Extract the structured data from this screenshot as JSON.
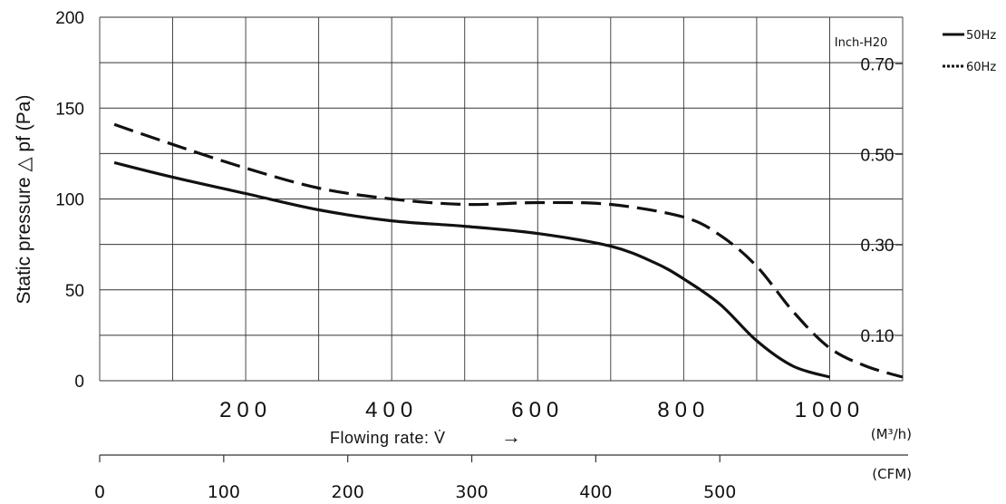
{
  "chart_data": {
    "type": "line",
    "title": "",
    "ylabel": "Static pressure △ pf (Pa)",
    "ylim": [
      0,
      200
    ],
    "y_ticks": [
      {
        "value": 0,
        "label": "0"
      },
      {
        "value": 50,
        "label": "50"
      },
      {
        "value": 100,
        "label": "100"
      },
      {
        "value": 150,
        "label": "150"
      },
      {
        "value": 200,
        "label": "200"
      }
    ],
    "xlim": [
      0,
      1100
    ],
    "x_ticks": [
      {
        "value": 200,
        "label": "200"
      },
      {
        "value": 400,
        "label": "400"
      },
      {
        "value": 600,
        "label": "600"
      },
      {
        "value": 800,
        "label": "800"
      },
      {
        "value": 1000,
        "label": "1000"
      }
    ],
    "xlabel": "Flowing rate: V̇",
    "xlabel_arrow": "→",
    "x_unit": "(M³/h)",
    "secondary_y": {
      "label": "Inch-H20",
      "ticks": [
        {
          "value": 0.1,
          "label": "0.10"
        },
        {
          "value": 0.3,
          "label": "0.30"
        },
        {
          "value": 0.5,
          "label": "0.50"
        },
        {
          "value": 0.7,
          "label": "0.70"
        }
      ]
    },
    "secondary_x": {
      "unit": "(CFM)",
      "ticks": [
        {
          "value": 0,
          "label": "0"
        },
        {
          "value": 100,
          "label": "100"
        },
        {
          "value": 200,
          "label": "200"
        },
        {
          "value": 300,
          "label": "300"
        },
        {
          "value": 400,
          "label": "400"
        },
        {
          "value": 500,
          "label": "500"
        }
      ]
    },
    "grid": true,
    "legend_position": "top-right outside",
    "series": [
      {
        "name": "50Hz",
        "style": "solid",
        "color": "#111111",
        "x": [
          20,
          100,
          200,
          300,
          400,
          500,
          600,
          700,
          760,
          800,
          850,
          900,
          950,
          1000
        ],
        "y": [
          120,
          112,
          103,
          94,
          88,
          85,
          81,
          74,
          65,
          56,
          42,
          22,
          8,
          2
        ]
      },
      {
        "name": "60Hz",
        "style": "dashed",
        "color": "#111111",
        "x": [
          20,
          100,
          200,
          300,
          400,
          500,
          600,
          700,
          800,
          850,
          900,
          950,
          1000,
          1050,
          1100
        ],
        "y": [
          141,
          130,
          117,
          106,
          100,
          97,
          98,
          97,
          90,
          80,
          63,
          38,
          18,
          8,
          2
        ]
      }
    ]
  }
}
